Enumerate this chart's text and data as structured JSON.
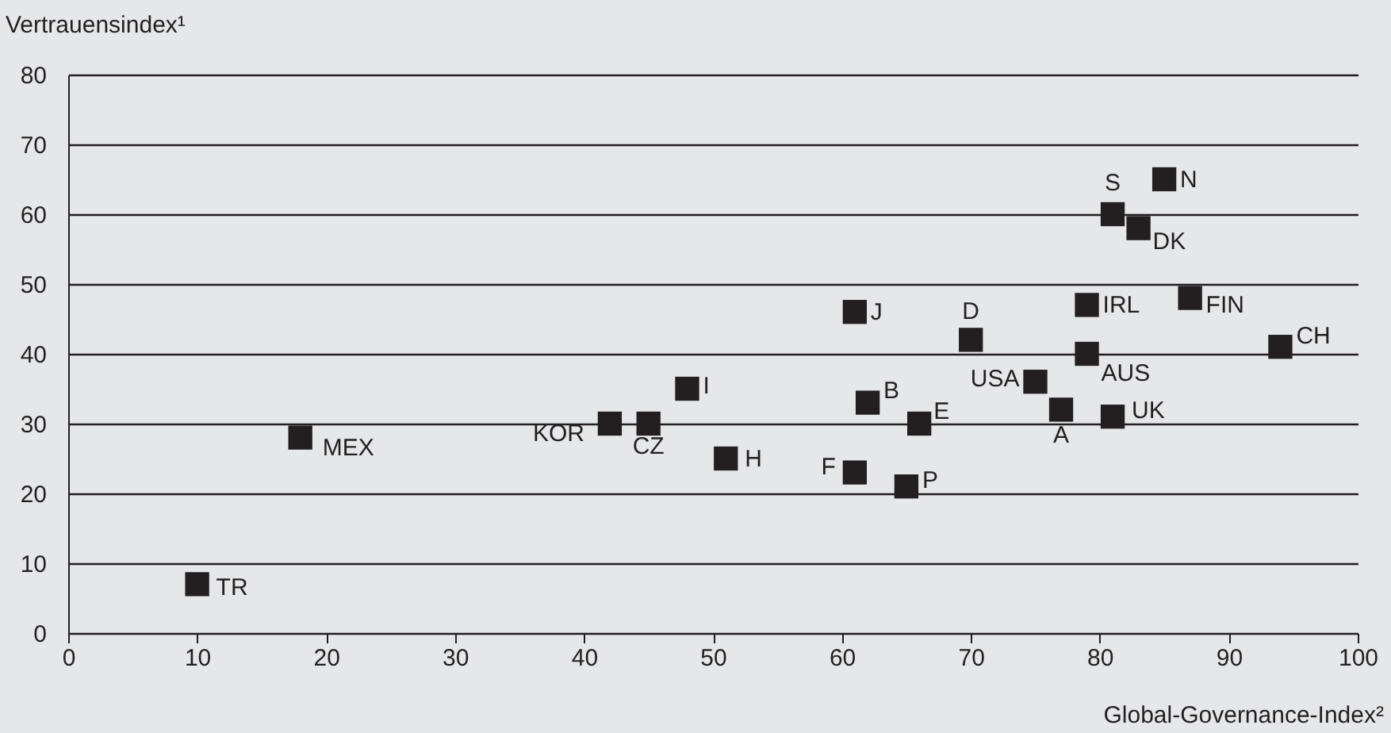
{
  "chart_data": {
    "type": "scatter",
    "xlabel": "Global-Governance-Index²",
    "ylabel": "Vertrauensindex¹",
    "xlim": [
      0,
      100
    ],
    "xticks": [
      0,
      10,
      20,
      30,
      40,
      50,
      60,
      70,
      80,
      90,
      100
    ],
    "ylim": [
      0,
      80
    ],
    "yticks": [
      0,
      10,
      20,
      30,
      40,
      50,
      60,
      70,
      80
    ],
    "grid": "y",
    "marker": "square",
    "series": [
      {
        "color": "#231f20",
        "x": [
          10,
          18,
          42,
          45,
          48,
          51,
          61,
          62,
          61,
          66,
          65,
          70,
          75,
          77,
          79,
          79,
          81,
          81,
          83,
          85,
          87,
          94
        ],
        "values": [
          7,
          28,
          30,
          30,
          35,
          25,
          46,
          33,
          23,
          30,
          21,
          42,
          36,
          32,
          47,
          40,
          31,
          60,
          58,
          65,
          48,
          41
        ]
      }
    ],
    "annotations": [
      {
        "text": "TR",
        "x": 10,
        "y": 7
      },
      {
        "text": "MEX",
        "x": 18,
        "y": 28
      },
      {
        "text": "KOR",
        "x": 42,
        "y": 30
      },
      {
        "text": "CZ",
        "x": 45,
        "y": 30
      },
      {
        "text": "I",
        "x": 48,
        "y": 35
      },
      {
        "text": "H",
        "x": 51,
        "y": 25
      },
      {
        "text": "J",
        "x": 61,
        "y": 46
      },
      {
        "text": "B",
        "x": 62,
        "y": 33
      },
      {
        "text": "F",
        "x": 61,
        "y": 23
      },
      {
        "text": "E",
        "x": 66,
        "y": 30
      },
      {
        "text": "P",
        "x": 65,
        "y": 21
      },
      {
        "text": "D",
        "x": 70,
        "y": 42
      },
      {
        "text": "USA",
        "x": 75,
        "y": 36
      },
      {
        "text": "A",
        "x": 77,
        "y": 32
      },
      {
        "text": "IRL",
        "x": 79,
        "y": 47
      },
      {
        "text": "AUS",
        "x": 79,
        "y": 40
      },
      {
        "text": "UK",
        "x": 81,
        "y": 31
      },
      {
        "text": "S",
        "x": 81,
        "y": 60
      },
      {
        "text": "DK",
        "x": 83,
        "y": 58
      },
      {
        "text": "N",
        "x": 85,
        "y": 65
      },
      {
        "text": "FIN",
        "x": 87,
        "y": 48
      },
      {
        "text": "CH",
        "x": 94,
        "y": 41
      }
    ]
  }
}
